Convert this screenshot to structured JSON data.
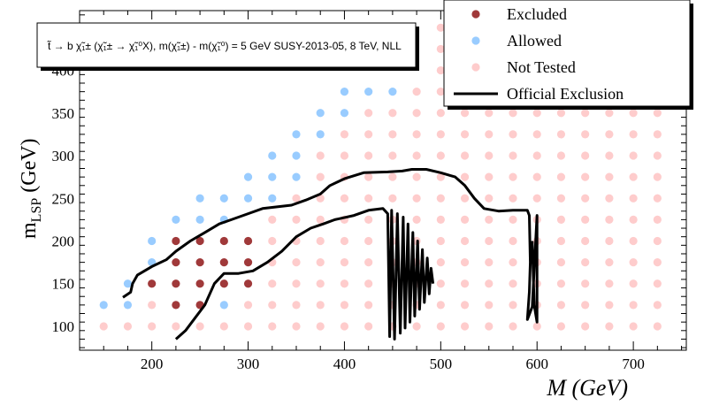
{
  "chart_data": {
    "type": "scatter",
    "xlim": [
      125,
      755
    ],
    "ylim": [
      72,
      470
    ],
    "x_ticks": [
      200,
      300,
      400,
      500,
      600,
      700
    ],
    "y_ticks": [
      100,
      150,
      200,
      250,
      300,
      350,
      400
    ],
    "x_tick_labels": [
      "200",
      "300",
      "400",
      "500",
      "600",
      "700"
    ],
    "y_tick_labels": [
      "100",
      "150",
      "200",
      "250",
      "300",
      "350",
      "400"
    ],
    "xlabel": "M (GeV)",
    "ylabel_main": "m",
    "ylabel_sub": "LSP",
    "ylabel_unit": " (GeV)",
    "info_text": "t̃ → b χ̃₁± (χ̃₁± → χ̃₁⁰X), m(χ̃₁±) - m(χ̃₁⁰) = 5 GeV SUSY-2013-05, 8 TeV, NLL",
    "legend": {
      "placement": "top-right",
      "entries": [
        {
          "label": "Excluded",
          "kind": "marker",
          "color": "#a0393a"
        },
        {
          "label": "Allowed",
          "kind": "marker",
          "color": "#99ccff"
        },
        {
          "label": "Not Tested",
          "kind": "marker",
          "color": "#fecccc"
        },
        {
          "label": "Official Exclusion",
          "kind": "line",
          "color": "#000000"
        }
      ]
    },
    "series": [
      {
        "name": "Excluded",
        "color": "#a0393a",
        "points": [
          [
            200,
            150
          ],
          [
            225,
            125
          ],
          [
            225,
            150
          ],
          [
            225,
            175
          ],
          [
            225,
            200
          ],
          [
            250,
            125
          ],
          [
            250,
            150
          ],
          [
            250,
            175
          ],
          [
            250,
            200
          ],
          [
            275,
            150
          ],
          [
            275,
            175
          ],
          [
            275,
            200
          ],
          [
            300,
            150
          ],
          [
            300,
            175
          ],
          [
            300,
            200
          ]
        ]
      },
      {
        "name": "Allowed",
        "color": "#99ccff",
        "points": [
          [
            150,
            125
          ],
          [
            175,
            125
          ],
          [
            175,
            150
          ],
          [
            200,
            175
          ],
          [
            200,
            200
          ],
          [
            225,
            225
          ],
          [
            250,
            225
          ],
          [
            250,
            250
          ],
          [
            275,
            125
          ],
          [
            275,
            225
          ],
          [
            275,
            250
          ],
          [
            300,
            250
          ],
          [
            300,
            275
          ],
          [
            325,
            250
          ],
          [
            325,
            275
          ],
          [
            325,
            300
          ],
          [
            350,
            275
          ],
          [
            350,
            300
          ],
          [
            350,
            325
          ],
          [
            375,
            325
          ],
          [
            375,
            350
          ],
          [
            400,
            350
          ],
          [
            400,
            375
          ],
          [
            425,
            375
          ],
          [
            450,
            375
          ]
        ]
      },
      {
        "name": "Not Tested",
        "color": "#fecccc",
        "points": [
          [
            150,
            100
          ],
          [
            175,
            100
          ],
          [
            200,
            100
          ],
          [
            200,
            125
          ],
          [
            225,
            100
          ],
          [
            250,
            100
          ],
          [
            275,
            100
          ],
          [
            300,
            100
          ],
          [
            300,
            125
          ],
          [
            325,
            100
          ],
          [
            325,
            125
          ],
          [
            325,
            150
          ],
          [
            325,
            175
          ],
          [
            325,
            200
          ],
          [
            325,
            225
          ],
          [
            350,
            100
          ],
          [
            350,
            125
          ],
          [
            350,
            150
          ],
          [
            350,
            175
          ],
          [
            350,
            200
          ],
          [
            350,
            225
          ],
          [
            350,
            250
          ],
          [
            375,
            100
          ],
          [
            375,
            125
          ],
          [
            375,
            150
          ],
          [
            375,
            175
          ],
          [
            375,
            200
          ],
          [
            375,
            225
          ],
          [
            375,
            250
          ],
          [
            375,
            275
          ],
          [
            375,
            300
          ],
          [
            400,
            100
          ],
          [
            400,
            125
          ],
          [
            400,
            150
          ],
          [
            400,
            175
          ],
          [
            400,
            200
          ],
          [
            400,
            225
          ],
          [
            400,
            250
          ],
          [
            400,
            275
          ],
          [
            400,
            300
          ],
          [
            400,
            325
          ],
          [
            425,
            100
          ],
          [
            425,
            125
          ],
          [
            425,
            150
          ],
          [
            425,
            175
          ],
          [
            425,
            200
          ],
          [
            425,
            225
          ],
          [
            425,
            250
          ],
          [
            425,
            275
          ],
          [
            425,
            300
          ],
          [
            425,
            325
          ],
          [
            425,
            350
          ],
          [
            450,
            100
          ],
          [
            450,
            125
          ],
          [
            450,
            150
          ],
          [
            450,
            175
          ],
          [
            450,
            200
          ],
          [
            450,
            225
          ],
          [
            450,
            250
          ],
          [
            450,
            275
          ],
          [
            450,
            300
          ],
          [
            450,
            325
          ],
          [
            450,
            350
          ],
          [
            475,
            100
          ],
          [
            475,
            125
          ],
          [
            475,
            150
          ],
          [
            475,
            175
          ],
          [
            475,
            200
          ],
          [
            475,
            225
          ],
          [
            475,
            250
          ],
          [
            475,
            275
          ],
          [
            475,
            300
          ],
          [
            475,
            325
          ],
          [
            475,
            350
          ],
          [
            475,
            375
          ],
          [
            500,
            100
          ],
          [
            500,
            125
          ],
          [
            500,
            150
          ],
          [
            500,
            175
          ],
          [
            500,
            200
          ],
          [
            500,
            225
          ],
          [
            500,
            250
          ],
          [
            500,
            275
          ],
          [
            500,
            300
          ],
          [
            500,
            325
          ],
          [
            500,
            350
          ],
          [
            500,
            375
          ],
          [
            500,
            400
          ],
          [
            500,
            425
          ],
          [
            500,
            450
          ],
          [
            525,
            100
          ],
          [
            525,
            125
          ],
          [
            525,
            150
          ],
          [
            525,
            175
          ],
          [
            525,
            200
          ],
          [
            525,
            225
          ],
          [
            525,
            250
          ],
          [
            525,
            275
          ],
          [
            525,
            300
          ],
          [
            525,
            325
          ],
          [
            525,
            350
          ],
          [
            550,
            100
          ],
          [
            550,
            125
          ],
          [
            550,
            150
          ],
          [
            550,
            175
          ],
          [
            550,
            200
          ],
          [
            550,
            225
          ],
          [
            550,
            250
          ],
          [
            550,
            275
          ],
          [
            550,
            300
          ],
          [
            550,
            325
          ],
          [
            550,
            350
          ],
          [
            575,
            100
          ],
          [
            575,
            125
          ],
          [
            575,
            150
          ],
          [
            575,
            175
          ],
          [
            575,
            200
          ],
          [
            575,
            225
          ],
          [
            575,
            250
          ],
          [
            575,
            275
          ],
          [
            575,
            300
          ],
          [
            575,
            325
          ],
          [
            575,
            350
          ],
          [
            600,
            100
          ],
          [
            600,
            125
          ],
          [
            600,
            150
          ],
          [
            600,
            175
          ],
          [
            600,
            200
          ],
          [
            600,
            225
          ],
          [
            600,
            250
          ],
          [
            600,
            275
          ],
          [
            600,
            300
          ],
          [
            600,
            325
          ],
          [
            600,
            350
          ],
          [
            625,
            100
          ],
          [
            625,
            125
          ],
          [
            625,
            150
          ],
          [
            625,
            175
          ],
          [
            625,
            200
          ],
          [
            625,
            225
          ],
          [
            625,
            250
          ],
          [
            625,
            275
          ],
          [
            625,
            300
          ],
          [
            625,
            325
          ],
          [
            625,
            350
          ],
          [
            650,
            100
          ],
          [
            650,
            125
          ],
          [
            650,
            150
          ],
          [
            650,
            175
          ],
          [
            650,
            200
          ],
          [
            650,
            225
          ],
          [
            650,
            250
          ],
          [
            650,
            275
          ],
          [
            650,
            300
          ],
          [
            650,
            325
          ],
          [
            650,
            350
          ],
          [
            675,
            100
          ],
          [
            675,
            125
          ],
          [
            675,
            150
          ],
          [
            675,
            175
          ],
          [
            675,
            200
          ],
          [
            675,
            225
          ],
          [
            675,
            250
          ],
          [
            675,
            275
          ],
          [
            675,
            300
          ],
          [
            675,
            325
          ],
          [
            675,
            350
          ],
          [
            700,
            100
          ],
          [
            700,
            125
          ],
          [
            700,
            150
          ],
          [
            700,
            175
          ],
          [
            700,
            200
          ],
          [
            700,
            225
          ],
          [
            700,
            250
          ],
          [
            700,
            275
          ],
          [
            700,
            300
          ],
          [
            700,
            325
          ],
          [
            700,
            350
          ],
          [
            725,
            100
          ],
          [
            725,
            125
          ],
          [
            725,
            150
          ],
          [
            725,
            175
          ],
          [
            725,
            200
          ],
          [
            725,
            225
          ],
          [
            725,
            250
          ],
          [
            725,
            275
          ],
          [
            725,
            300
          ],
          [
            725,
            325
          ],
          [
            725,
            350
          ]
        ]
      }
    ],
    "exclusion_curve": [
      [
        170,
        134
      ],
      [
        178,
        140
      ],
      [
        180,
        150
      ],
      [
        185,
        160
      ],
      [
        200,
        170
      ],
      [
        215,
        178
      ],
      [
        225,
        188
      ],
      [
        240,
        200
      ],
      [
        255,
        210
      ],
      [
        270,
        220
      ],
      [
        290,
        228
      ],
      [
        300,
        232
      ],
      [
        315,
        238
      ],
      [
        330,
        240
      ],
      [
        345,
        242
      ],
      [
        360,
        248
      ],
      [
        375,
        255
      ],
      [
        385,
        265
      ],
      [
        400,
        273
      ],
      [
        420,
        280
      ],
      [
        445,
        281
      ],
      [
        460,
        282
      ],
      [
        470,
        284
      ],
      [
        485,
        284
      ],
      [
        500,
        280
      ],
      [
        515,
        275
      ],
      [
        525,
        265
      ],
      [
        535,
        250
      ],
      [
        545,
        238
      ],
      [
        560,
        235
      ],
      [
        575,
        236
      ],
      [
        590,
        236
      ],
      [
        592,
        230
      ],
      [
        593,
        175
      ],
      [
        592,
        140
      ],
      [
        590,
        108
      ],
      [
        595,
        123
      ],
      [
        600,
        230
      ],
      [
        600,
        170
      ],
      [
        600,
        105
      ],
      [
        597,
        125
      ],
      [
        595,
        200
      ]
    ],
    "exclusion_curve_lower": [
      [
        225,
        85
      ],
      [
        235,
        95
      ],
      [
        245,
        110
      ],
      [
        255,
        125
      ],
      [
        265,
        150
      ],
      [
        275,
        162
      ],
      [
        290,
        162
      ],
      [
        305,
        165
      ],
      [
        320,
        175
      ],
      [
        335,
        188
      ],
      [
        350,
        205
      ],
      [
        365,
        215
      ],
      [
        378,
        220
      ],
      [
        390,
        225
      ],
      [
        410,
        230
      ],
      [
        425,
        236
      ],
      [
        440,
        238
      ],
      [
        445,
        232
      ],
      [
        447,
        88
      ],
      [
        449,
        236
      ],
      [
        452,
        85
      ],
      [
        455,
        232
      ],
      [
        458,
        92
      ],
      [
        461,
        228
      ],
      [
        463,
        98
      ],
      [
        466,
        220
      ],
      [
        468,
        105
      ],
      [
        471,
        210
      ],
      [
        473,
        112
      ],
      [
        476,
        200
      ],
      [
        478,
        120
      ],
      [
        481,
        190
      ],
      [
        483,
        128
      ],
      [
        486,
        180
      ],
      [
        488,
        138
      ],
      [
        490,
        168
      ],
      [
        492,
        150
      ]
    ]
  }
}
